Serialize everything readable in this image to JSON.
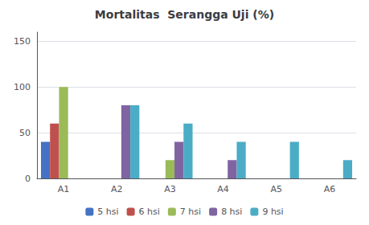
{
  "chart_data": {
    "type": "bar",
    "title": "Mortalitas  Serangga Uji (%)",
    "categories": [
      "A1",
      "A2",
      "A3",
      "A4",
      "A5",
      "A6"
    ],
    "series": [
      {
        "name": "5 hsi",
        "color": "#4472C4",
        "values": [
          40,
          0,
          0,
          0,
          0,
          0
        ]
      },
      {
        "name": "6 hsi",
        "color": "#C0504D",
        "values": [
          60,
          0,
          0,
          0,
          0,
          0
        ]
      },
      {
        "name": "7 hsi",
        "color": "#9BBB59",
        "values": [
          100,
          0,
          20,
          0,
          0,
          0
        ]
      },
      {
        "name": "8 hsi",
        "color": "#8064A2",
        "values": [
          0,
          80,
          40,
          20,
          0,
          0
        ]
      },
      {
        "name": "9 hsi",
        "color": "#4BACC6",
        "values": [
          0,
          80,
          60,
          40,
          40,
          20
        ]
      }
    ],
    "ylim": [
      0,
      160
    ],
    "yticks": [
      0,
      50,
      100,
      150
    ],
    "grid": true,
    "legend": "bottom"
  }
}
